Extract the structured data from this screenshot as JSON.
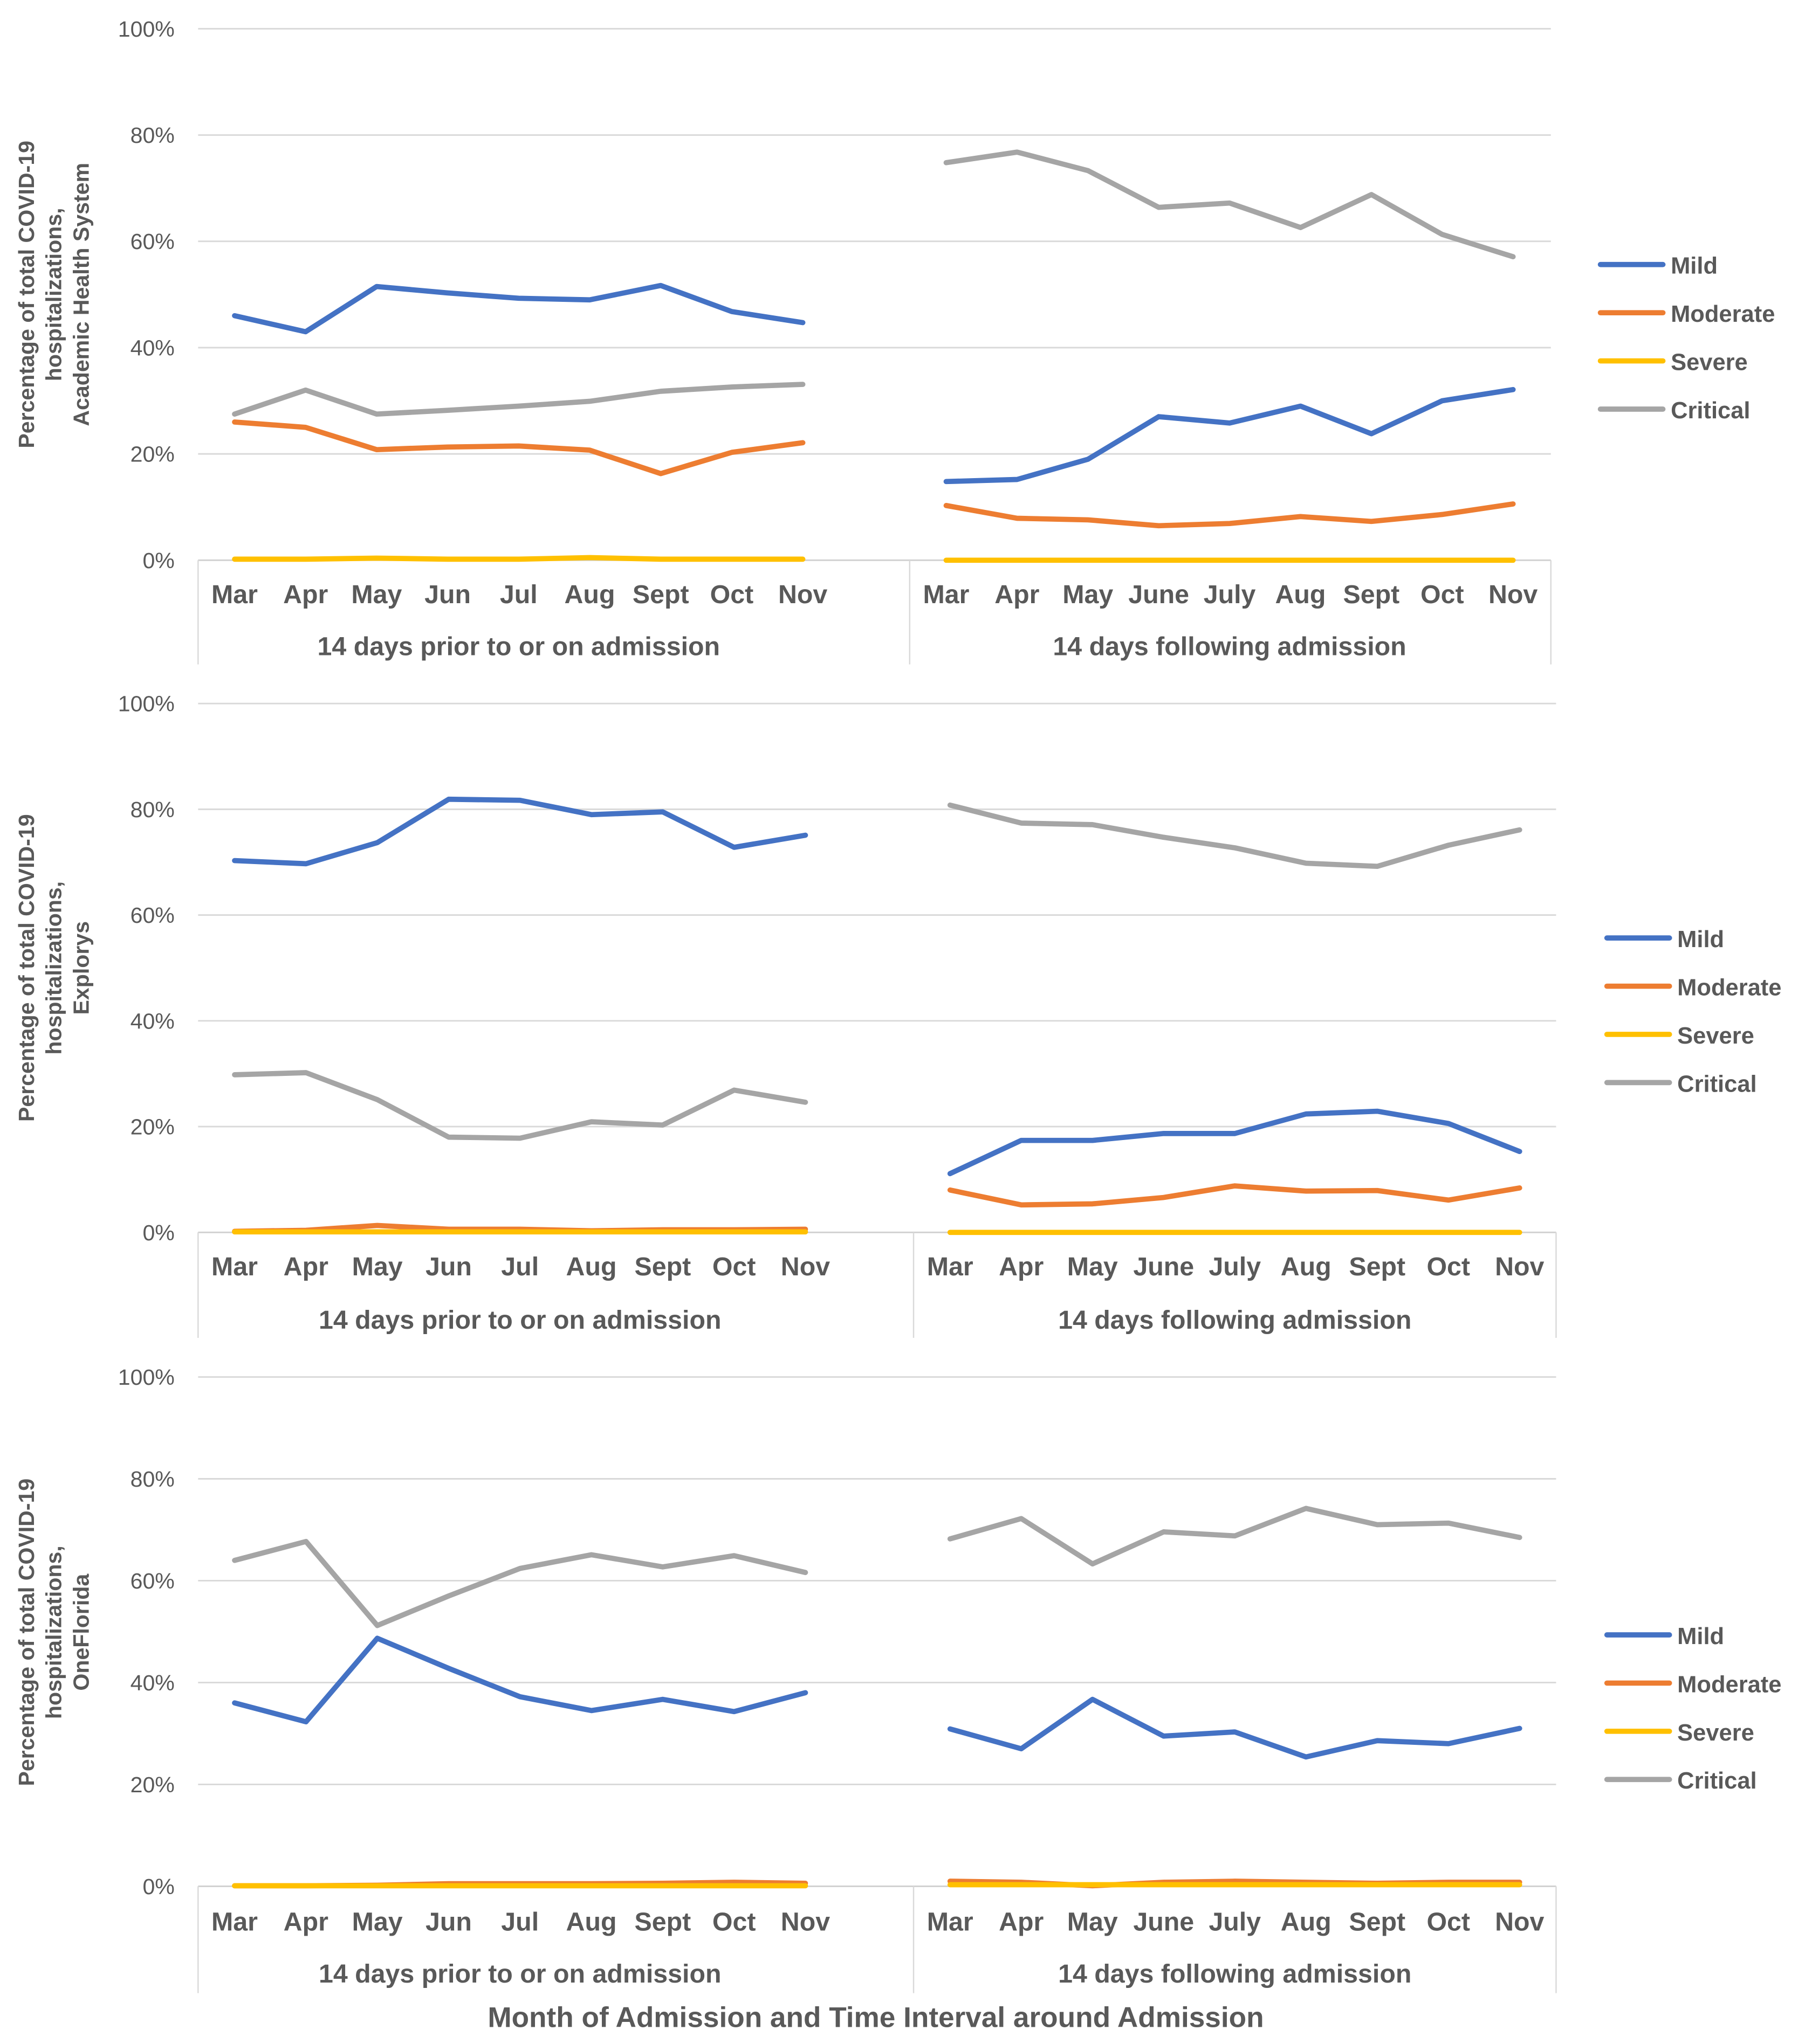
{
  "chart_data": {
    "type": "line",
    "xlabel": "Month of Admission and Time Interval around Admission",
    "y_ticks": [
      "0%",
      "20%",
      "40%",
      "60%",
      "80%",
      "100%"
    ],
    "ylim": [
      0,
      100
    ],
    "grid": true,
    "legend_placement": "right",
    "legend": [
      "Mild",
      "Moderate",
      "Severe",
      "Critical"
    ],
    "colors": {
      "Mild": "#4472C4",
      "Moderate": "#ED7D31",
      "Severe": "#FFC000",
      "Critical": "#A5A5A5"
    },
    "panels": [
      {
        "ylabel": [
          "Percentage of total COVID-19",
          "hospitalizations,",
          "Academic Health System"
        ],
        "groups": [
          {
            "label": "14 days prior to or on admission",
            "categories": [
              "Mar",
              "Apr",
              "May",
              "Jun",
              "Jul",
              "Aug",
              "Sept",
              "Oct",
              "Nov"
            ],
            "series": [
              {
                "name": "Mild",
                "values": [
                  46,
                  43,
                  51.5,
                  50.3,
                  49.3,
                  49,
                  51.7,
                  46.8,
                  44.7
                ]
              },
              {
                "name": "Moderate",
                "values": [
                  26,
                  25,
                  20.8,
                  21.3,
                  21.5,
                  20.7,
                  16.3,
                  20.3,
                  22.1
                ]
              },
              {
                "name": "Severe",
                "values": [
                  0.2,
                  0.2,
                  0.4,
                  0.2,
                  0.2,
                  0.5,
                  0.2,
                  0.2,
                  0.2
                ]
              },
              {
                "name": "Critical",
                "values": [
                  27.5,
                  32,
                  27.5,
                  28.2,
                  29,
                  29.9,
                  31.8,
                  32.6,
                  33.1
                ]
              }
            ]
          },
          {
            "label": "14 days following admission",
            "categories": [
              "Mar",
              "Apr",
              "May",
              "June",
              "July",
              "Aug",
              "Sept",
              "Oct",
              "Nov"
            ],
            "series": [
              {
                "name": "Mild",
                "values": [
                  14.8,
                  15.2,
                  19,
                  27,
                  25.8,
                  29,
                  23.8,
                  30,
                  32.1
                ]
              },
              {
                "name": "Moderate",
                "values": [
                  10.3,
                  7.9,
                  7.6,
                  6.5,
                  6.9,
                  8.2,
                  7.3,
                  8.6,
                  10.6
                ]
              },
              {
                "name": "Severe",
                "values": [
                  0,
                  0,
                  0,
                  0,
                  0,
                  0,
                  0,
                  0,
                  0
                ]
              },
              {
                "name": "Critical",
                "values": [
                  74.8,
                  76.8,
                  73.3,
                  66.4,
                  67.2,
                  62.6,
                  68.8,
                  61.3,
                  57.1
                ]
              }
            ]
          }
        ]
      },
      {
        "ylabel": [
          "Percentage of total COVID-19",
          "hospitalizations,",
          "Explorys"
        ],
        "groups": [
          {
            "label": "14 days prior to or on admission",
            "categories": [
              "Mar",
              "Apr",
              "May",
              "Jun",
              "Jul",
              "Aug",
              "Sept",
              "Oct",
              "Nov"
            ],
            "series": [
              {
                "name": "Mild",
                "values": [
                  70.3,
                  69.7,
                  73.7,
                  81.9,
                  81.7,
                  79,
                  79.5,
                  72.8,
                  75.1
                ]
              },
              {
                "name": "Moderate",
                "values": [
                  0.2,
                  0.4,
                  1.3,
                  0.6,
                  0.6,
                  0.3,
                  0.5,
                  0.5,
                  0.6
                ]
              },
              {
                "name": "Severe",
                "values": [
                  0.1,
                  0.1,
                  0.1,
                  0.1,
                  0.1,
                  0.1,
                  0.1,
                  0.1,
                  0.1
                ]
              },
              {
                "name": "Critical",
                "values": [
                  29.8,
                  30.2,
                  25.1,
                  18,
                  17.8,
                  20.9,
                  20.3,
                  26.9,
                  24.6
                ]
              }
            ]
          },
          {
            "label": "14 days following admission",
            "categories": [
              "Mar",
              "Apr",
              "May",
              "June",
              "July",
              "Aug",
              "Sept",
              "Oct",
              "Nov"
            ],
            "series": [
              {
                "name": "Mild",
                "values": [
                  11.1,
                  17.4,
                  17.4,
                  18.7,
                  18.7,
                  22.4,
                  22.9,
                  20.6,
                  15.3
                ]
              },
              {
                "name": "Moderate",
                "values": [
                  8,
                  5.2,
                  5.4,
                  6.6,
                  8.8,
                  7.8,
                  7.9,
                  6.1,
                  8.4
                ]
              },
              {
                "name": "Severe",
                "values": [
                  0,
                  0,
                  0,
                  0,
                  0,
                  0,
                  0,
                  0,
                  0
                ]
              },
              {
                "name": "Critical",
                "values": [
                  80.8,
                  77.4,
                  77.1,
                  74.7,
                  72.7,
                  69.8,
                  69.2,
                  73.2,
                  76.1
                ]
              }
            ]
          }
        ]
      },
      {
        "ylabel": [
          "Percentage of total COVID-19",
          "hospitalizations,",
          "OneFlorida"
        ],
        "groups": [
          {
            "label": "14 days prior to or on admission",
            "categories": [
              "Mar",
              "Apr",
              "May",
              "Jun",
              "Jul",
              "Aug",
              "Sept",
              "Oct",
              "Nov"
            ],
            "series": [
              {
                "name": "Mild",
                "values": [
                  36,
                  32.3,
                  48.7,
                  42.8,
                  37.2,
                  34.5,
                  36.7,
                  34.3,
                  38
                ]
              },
              {
                "name": "Moderate",
                "values": [
                  0.1,
                  0.1,
                  0.2,
                  0.5,
                  0.5,
                  0.5,
                  0.6,
                  0.8,
                  0.6
                ]
              },
              {
                "name": "Severe",
                "values": [
                  0.1,
                  0.1,
                  0.1,
                  0.1,
                  0.1,
                  0.1,
                  0.1,
                  0.1,
                  0.1
                ]
              },
              {
                "name": "Critical",
                "values": [
                  64,
                  67.7,
                  51.2,
                  57,
                  62.4,
                  65.1,
                  62.7,
                  64.9,
                  61.6
                ]
              }
            ]
          },
          {
            "label": "14 days following admission",
            "categories": [
              "Mar",
              "Apr",
              "May",
              "June",
              "July",
              "Aug",
              "Sept",
              "Oct",
              "Nov"
            ],
            "series": [
              {
                "name": "Mild",
                "values": [
                  30.9,
                  27,
                  36.7,
                  29.5,
                  30.3,
                  25.4,
                  28.6,
                  28,
                  31
                ]
              },
              {
                "name": "Moderate",
                "values": [
                  1,
                  0.8,
                  0.1,
                  0.8,
                  1,
                  0.8,
                  0.6,
                  0.8,
                  0.8
                ]
              },
              {
                "name": "Severe",
                "values": [
                  0.3,
                  0.3,
                  0.3,
                  0.3,
                  0.3,
                  0.3,
                  0.3,
                  0.3,
                  0.3
                ]
              },
              {
                "name": "Critical",
                "values": [
                  68.2,
                  72.2,
                  63.3,
                  69.6,
                  68.8,
                  74.2,
                  71,
                  71.3,
                  68.5
                ]
              }
            ]
          }
        ]
      }
    ]
  }
}
